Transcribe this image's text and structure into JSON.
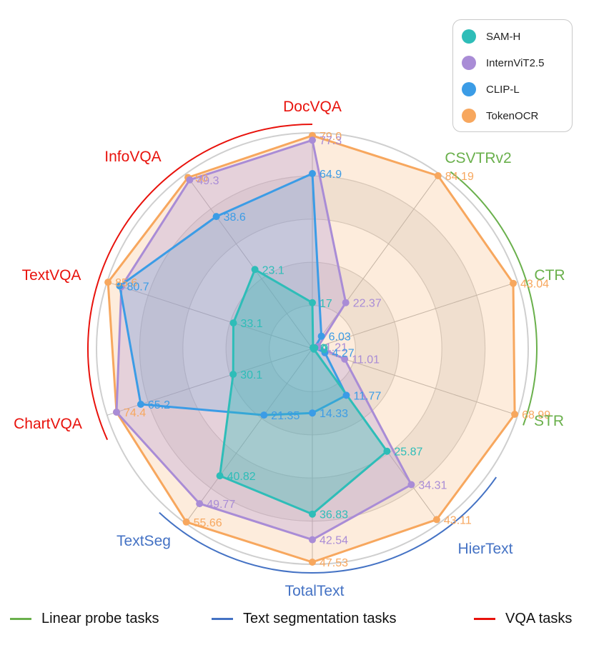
{
  "chart_data": {
    "type": "radar",
    "axes": [
      "DocVQA",
      "CSVTRv2",
      "CTR",
      "STR",
      "HierText",
      "TotalText",
      "TextSeg",
      "ChartVQA",
      "TextVQA",
      "InfoVQA"
    ],
    "axis_groups": {
      "DocVQA": "vqa",
      "CSVTRv2": "linear",
      "CTR": "linear",
      "STR": "linear",
      "HierText": "seg",
      "TotalText": "seg",
      "TextSeg": "seg",
      "ChartVQA": "vqa",
      "TextVQA": "vqa",
      "InfoVQA": "vqa"
    },
    "series": [
      {
        "name": "SAM-H",
        "color": "#2ebdb8",
        "values": [
          17,
          0.5,
          0.5,
          0.5,
          25.87,
          36.83,
          40.82,
          30.1,
          33.1,
          23.1
        ],
        "labels": [
          "17",
          "0",
          "0",
          "0",
          "25.87",
          "36.83",
          "40.82",
          "30.1",
          "33.1",
          "23.1"
        ]
      },
      {
        "name": "InternViT2.5",
        "color": "#a98cd6",
        "values": [
          77.3,
          22.37,
          1.21,
          11.01,
          34.31,
          42.54,
          49.77,
          74.4,
          80.0,
          49.3
        ],
        "labels": [
          "77.3",
          "22.37",
          "1.21",
          "11.01",
          "34.31",
          "42.54",
          "49.77",
          "",
          "",
          "49.3"
        ]
      },
      {
        "name": "CLIP-L",
        "color": "#3b9ce6",
        "values": [
          64.9,
          6.03,
          0.5,
          4.27,
          11.77,
          14.33,
          21.35,
          65.2,
          80.7,
          38.6
        ],
        "labels": [
          "64.9",
          "6.03",
          "",
          "4.27",
          "11.77",
          "14.33",
          "21.35",
          "65.2",
          "80.7",
          "38.6"
        ]
      },
      {
        "name": "TokenOCR",
        "color": "#f7a75e",
        "values": [
          79.0,
          84.19,
          43.04,
          68.99,
          43.11,
          47.53,
          55.66,
          74.4,
          85.6,
          50.0
        ],
        "labels": [
          "79.0",
          "84.19",
          "43.04",
          "68.99",
          "43.11",
          "47.53",
          "55.66",
          "74.4",
          "85.6",
          "50"
        ]
      }
    ],
    "axis_max": [
      80,
      85,
      44,
      70,
      44,
      48,
      56,
      78,
      86,
      51
    ],
    "group_colors": {
      "linear": "#6ab04c",
      "seg": "#4472c4",
      "vqa": "#e8120c"
    },
    "legend_position": "top-right"
  },
  "legend": {
    "items": [
      {
        "label": "SAM-H",
        "color": "#2ebdb8"
      },
      {
        "label": "InternViT2.5",
        "color": "#a98cd6"
      },
      {
        "label": "CLIP-L",
        "color": "#3b9ce6"
      },
      {
        "label": "TokenOCR",
        "color": "#f7a75e"
      }
    ]
  },
  "bottom_legend": {
    "linear": {
      "label": "Linear probe tasks",
      "color": "#6ab04c"
    },
    "seg": {
      "label": "Text segmentation tasks",
      "color": "#4472c4"
    },
    "vqa": {
      "label": "VQA tasks",
      "color": "#e8120c"
    }
  }
}
